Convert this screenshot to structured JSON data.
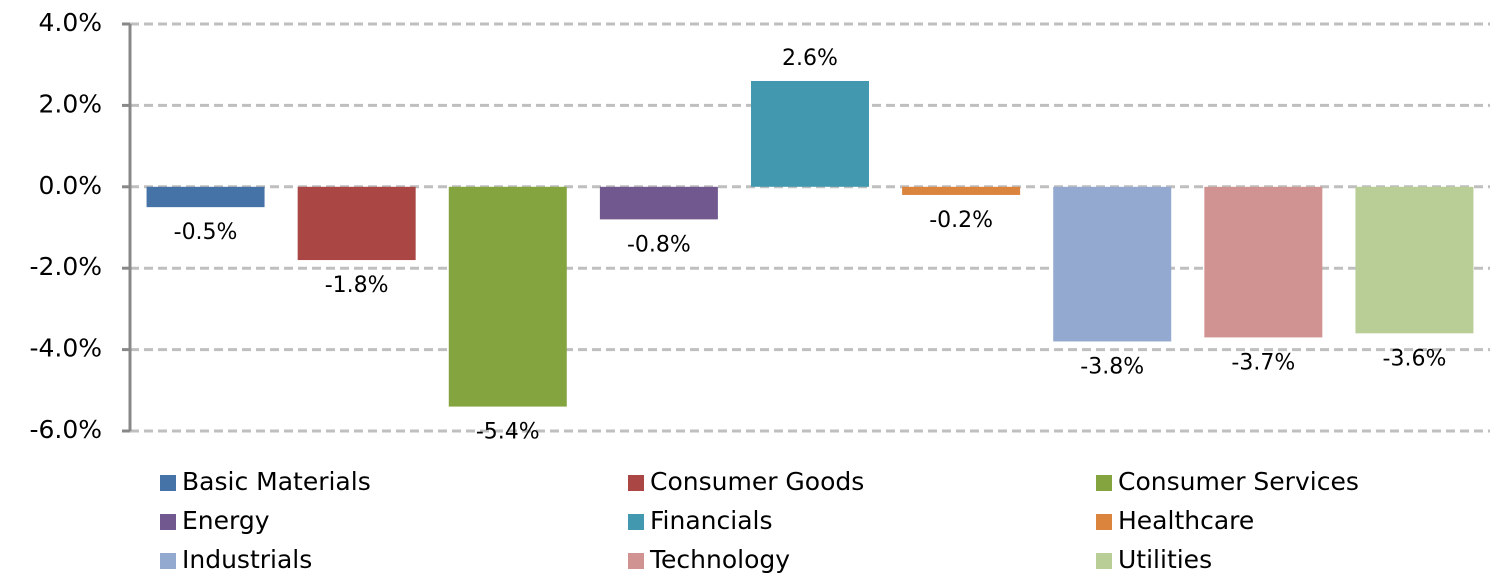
{
  "chart_data": {
    "type": "bar",
    "series": [
      {
        "name": "Basic Materials",
        "color": "#4572a7",
        "values": [
          -0.5
        ],
        "value_labels": [
          "-0.5%"
        ]
      },
      {
        "name": "Consumer Goods",
        "color": "#aa4643",
        "values": [
          -1.8
        ],
        "value_labels": [
          "-1.8%"
        ]
      },
      {
        "name": "Consumer Services",
        "color": "#84a440",
        "values": [
          -5.4
        ],
        "value_labels": [
          "-5.4%"
        ]
      },
      {
        "name": "Energy",
        "color": "#71588f",
        "values": [
          -0.8
        ],
        "value_labels": [
          "-0.8%"
        ]
      },
      {
        "name": "Financials",
        "color": "#4198af",
        "values": [
          2.6
        ],
        "value_labels": [
          "2.6%"
        ]
      },
      {
        "name": "Healthcare",
        "color": "#db843d",
        "values": [
          -0.2
        ],
        "value_labels": [
          "-0.2%"
        ]
      },
      {
        "name": "Industrials",
        "color": "#93a9cf",
        "values": [
          -3.8
        ],
        "value_labels": [
          "-3.8%"
        ]
      },
      {
        "name": "Technology",
        "color": "#d19392",
        "values": [
          -3.7
        ],
        "value_labels": [
          "-3.7%"
        ]
      },
      {
        "name": "Utilities",
        "color": "#b9cd96",
        "values": [
          -3.6
        ],
        "value_labels": [
          "-3.6%"
        ]
      }
    ],
    "ylim": [
      -6,
      4
    ],
    "yticks": [
      {
        "value": -6,
        "label": "-6.0%"
      },
      {
        "value": -4,
        "label": "-4.0%"
      },
      {
        "value": -2,
        "label": "-2.0%"
      },
      {
        "value": 0,
        "label": "0.0%"
      },
      {
        "value": 2,
        "label": "2.0%"
      },
      {
        "value": 4,
        "label": "4.0%"
      }
    ],
    "grid": true,
    "legend": "bottom"
  }
}
